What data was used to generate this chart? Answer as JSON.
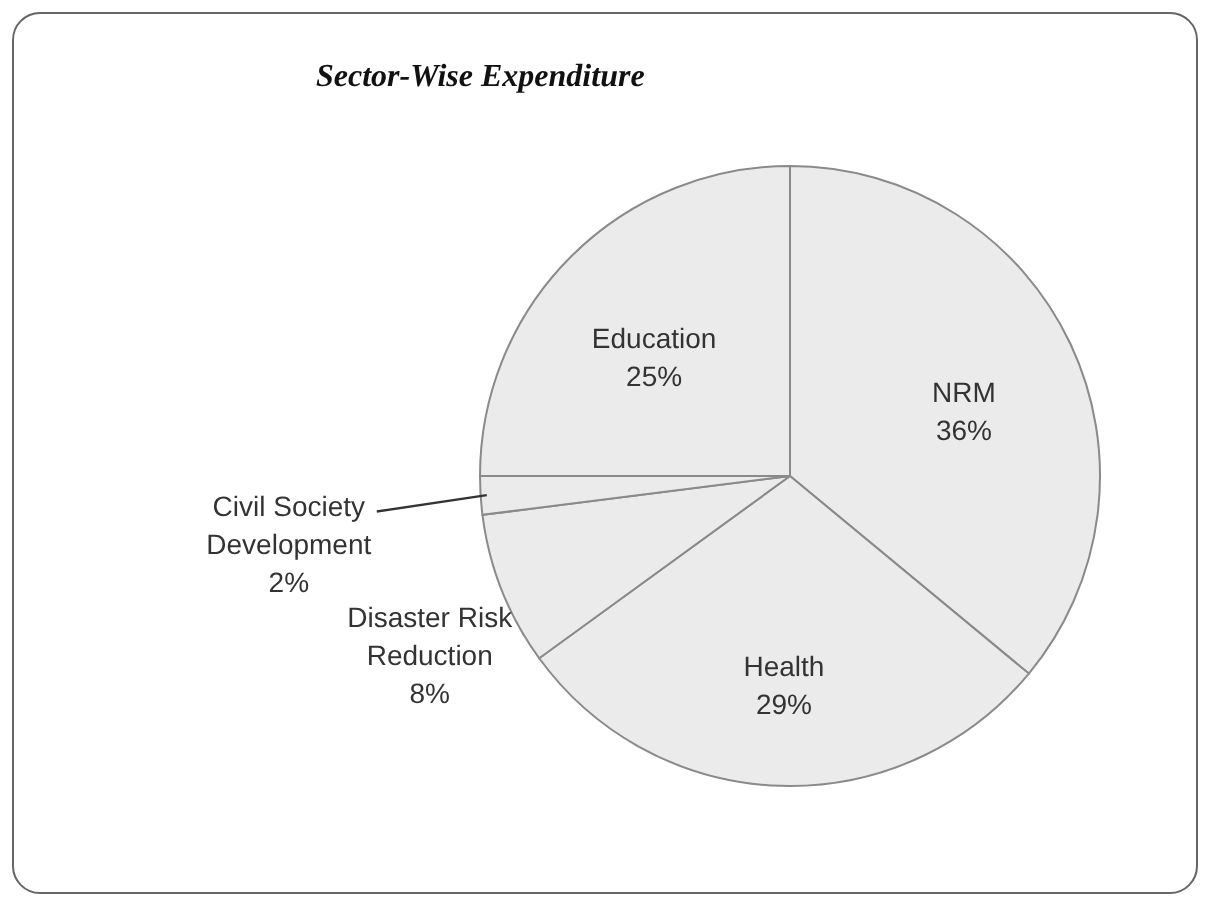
{
  "chart_data": {
    "type": "pie",
    "title": "Sector-Wise Expenditure",
    "categories": [
      "NRM",
      "Health",
      "Disaster Risk Reduction",
      "Civil Society Development",
      "Education"
    ],
    "values": [
      36,
      29,
      8,
      2,
      25
    ],
    "colors": [
      "#ebebeb",
      "#ebebeb",
      "#ebebeb",
      "#ebebeb",
      "#ebebeb"
    ],
    "value_labels": [
      "36%",
      "29%",
      "8%",
      "2%",
      "25%"
    ]
  }
}
